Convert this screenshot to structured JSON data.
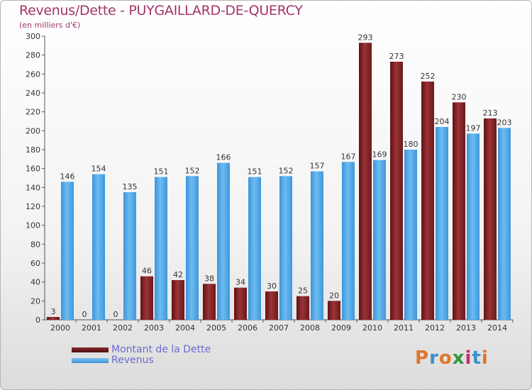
{
  "header": {
    "title": "Revenus/Dette - PUYGAILLARD-DE-QUERCY",
    "subtitle": "(en milliers d'€)"
  },
  "legend": {
    "dette_label": "Montant de la Dette",
    "revenus_label": "Revenus"
  },
  "logo": {
    "text": "Proxiti"
  },
  "colors": {
    "dette": "#7a1f22",
    "dette_light": "#a53a3c",
    "revenus": "#4aa3e6",
    "revenus_light": "#72bdf0",
    "title": "#a4336a"
  },
  "chart_data": {
    "type": "bar",
    "title": "Revenus/Dette - PUYGAILLARD-DE-QUERCY",
    "subtitle": "(en milliers d'€)",
    "categories": [
      "2000",
      "2001",
      "2002",
      "2003",
      "2004",
      "2005",
      "2006",
      "2007",
      "2008",
      "2009",
      "2010",
      "2011",
      "2012",
      "2013",
      "2014"
    ],
    "series": [
      {
        "name": "Montant de la Dette",
        "values": [
          3,
          0,
          0,
          46,
          42,
          38,
          34,
          30,
          25,
          20,
          293,
          273,
          252,
          230,
          213
        ]
      },
      {
        "name": "Revenus",
        "values": [
          146,
          154,
          135,
          151,
          152,
          166,
          151,
          152,
          157,
          167,
          169,
          180,
          204,
          197,
          203
        ]
      }
    ],
    "ylim": [
      0,
      300
    ],
    "yticks": [
      0,
      20,
      40,
      60,
      80,
      100,
      120,
      140,
      160,
      180,
      200,
      220,
      240,
      260,
      280,
      300
    ],
    "grid": false,
    "legend_position": "bottom-left"
  }
}
